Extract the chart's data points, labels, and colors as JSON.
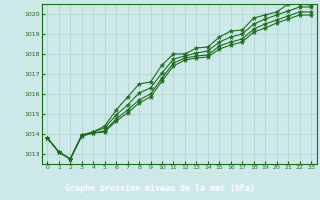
{
  "xlabel": "Graphe pression niveau de la mer (hPa)",
  "xlim": [
    -0.5,
    23.5
  ],
  "ylim": [
    1012.5,
    1020.5
  ],
  "yticks": [
    1013,
    1014,
    1015,
    1016,
    1017,
    1018,
    1019,
    1020
  ],
  "xticks": [
    0,
    1,
    2,
    3,
    4,
    5,
    6,
    7,
    8,
    9,
    10,
    11,
    12,
    13,
    14,
    15,
    16,
    17,
    18,
    19,
    20,
    21,
    22,
    23
  ],
  "bg_color": "#cde8e8",
  "grid_color": "#b0d0d0",
  "line_color": "#1a6e1a",
  "label_bg": "#1a6e1a",
  "label_fg": "#ffffff",
  "series": [
    [
      1013.8,
      1013.1,
      1012.75,
      1013.95,
      1014.1,
      1014.4,
      1015.2,
      1015.85,
      1016.5,
      1016.6,
      1017.45,
      1018.0,
      1018.0,
      1018.3,
      1018.35,
      1018.85,
      1019.15,
      1019.2,
      1019.8,
      1019.95,
      1020.1,
      1020.5,
      1020.5,
      1020.45
    ],
    [
      1013.8,
      1013.1,
      1012.75,
      1013.95,
      1014.1,
      1014.3,
      1014.95,
      1015.45,
      1016.05,
      1016.3,
      1017.05,
      1017.75,
      1017.9,
      1018.05,
      1018.15,
      1018.6,
      1018.85,
      1019.0,
      1019.5,
      1019.75,
      1019.95,
      1020.15,
      1020.35,
      1020.35
    ],
    [
      1013.8,
      1013.1,
      1012.75,
      1013.9,
      1014.05,
      1014.15,
      1014.75,
      1015.2,
      1015.7,
      1016.0,
      1016.8,
      1017.55,
      1017.8,
      1017.9,
      1017.95,
      1018.4,
      1018.6,
      1018.75,
      1019.25,
      1019.5,
      1019.7,
      1019.9,
      1020.1,
      1020.1
    ],
    [
      1013.8,
      1013.1,
      1012.75,
      1013.9,
      1014.05,
      1014.1,
      1014.65,
      1015.05,
      1015.55,
      1015.85,
      1016.65,
      1017.4,
      1017.7,
      1017.8,
      1017.85,
      1018.25,
      1018.45,
      1018.6,
      1019.1,
      1019.3,
      1019.55,
      1019.75,
      1019.95,
      1019.95
    ]
  ],
  "marker": "*",
  "markersize": 3.5,
  "linewidth": 0.8
}
